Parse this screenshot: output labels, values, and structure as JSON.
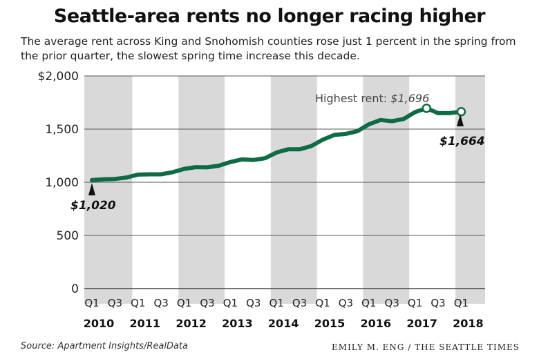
{
  "chart_data": {
    "type": "line",
    "title": "Seattle-area rents no longer racing higher",
    "subtitle": "The average rent across King and Snohomish counties rose just 1 percent in the spring from the prior quarter, the slowest spring time increase this decade.",
    "xlabel": "",
    "ylabel": "",
    "x": [
      "2010 Q1",
      "2010 Q2",
      "2010 Q3",
      "2010 Q4",
      "2011 Q1",
      "2011 Q2",
      "2011 Q3",
      "2011 Q4",
      "2012 Q1",
      "2012 Q2",
      "2012 Q3",
      "2012 Q4",
      "2013 Q1",
      "2013 Q2",
      "2013 Q3",
      "2013 Q4",
      "2014 Q1",
      "2014 Q2",
      "2014 Q3",
      "2014 Q4",
      "2015 Q1",
      "2015 Q2",
      "2015 Q3",
      "2015 Q4",
      "2016 Q1",
      "2016 Q2",
      "2016 Q3",
      "2016 Q4",
      "2017 Q1",
      "2017 Q2",
      "2017 Q3",
      "2017 Q4",
      "2018 Q1"
    ],
    "values": [
      1020,
      1028,
      1031,
      1045,
      1072,
      1075,
      1075,
      1095,
      1126,
      1142,
      1140,
      1156,
      1190,
      1215,
      1210,
      1226,
      1280,
      1310,
      1310,
      1340,
      1400,
      1445,
      1455,
      1480,
      1545,
      1586,
      1575,
      1595,
      1660,
      1696,
      1650,
      1650,
      1664
    ],
    "ylim": [
      0,
      2000
    ],
    "yticks": [
      "$2,000",
      "1,500",
      "1,000",
      "500",
      "0"
    ],
    "ytick_values": [
      2000,
      1500,
      1000,
      500,
      0
    ],
    "quarter_labels": [
      "Q1",
      "Q3"
    ],
    "years": [
      "2010",
      "2011",
      "2012",
      "2013",
      "2014",
      "2015",
      "2016",
      "2017",
      "2018"
    ],
    "shaded_years": [
      "2010",
      "2012",
      "2014",
      "2016",
      "2018"
    ],
    "grid": true,
    "line_color": "#0f6b43",
    "shade_color": "#d9d9d9",
    "annotations": {
      "highest_label": "Highest rent: ",
      "highest_value": "$1,696",
      "start_value": "$1,020",
      "end_value": "$1,664"
    }
  },
  "footer": {
    "source": "Source: Apartment Insights/RealData",
    "credit": "EMILY M. ENG / THE SEATTLE TIMES"
  }
}
